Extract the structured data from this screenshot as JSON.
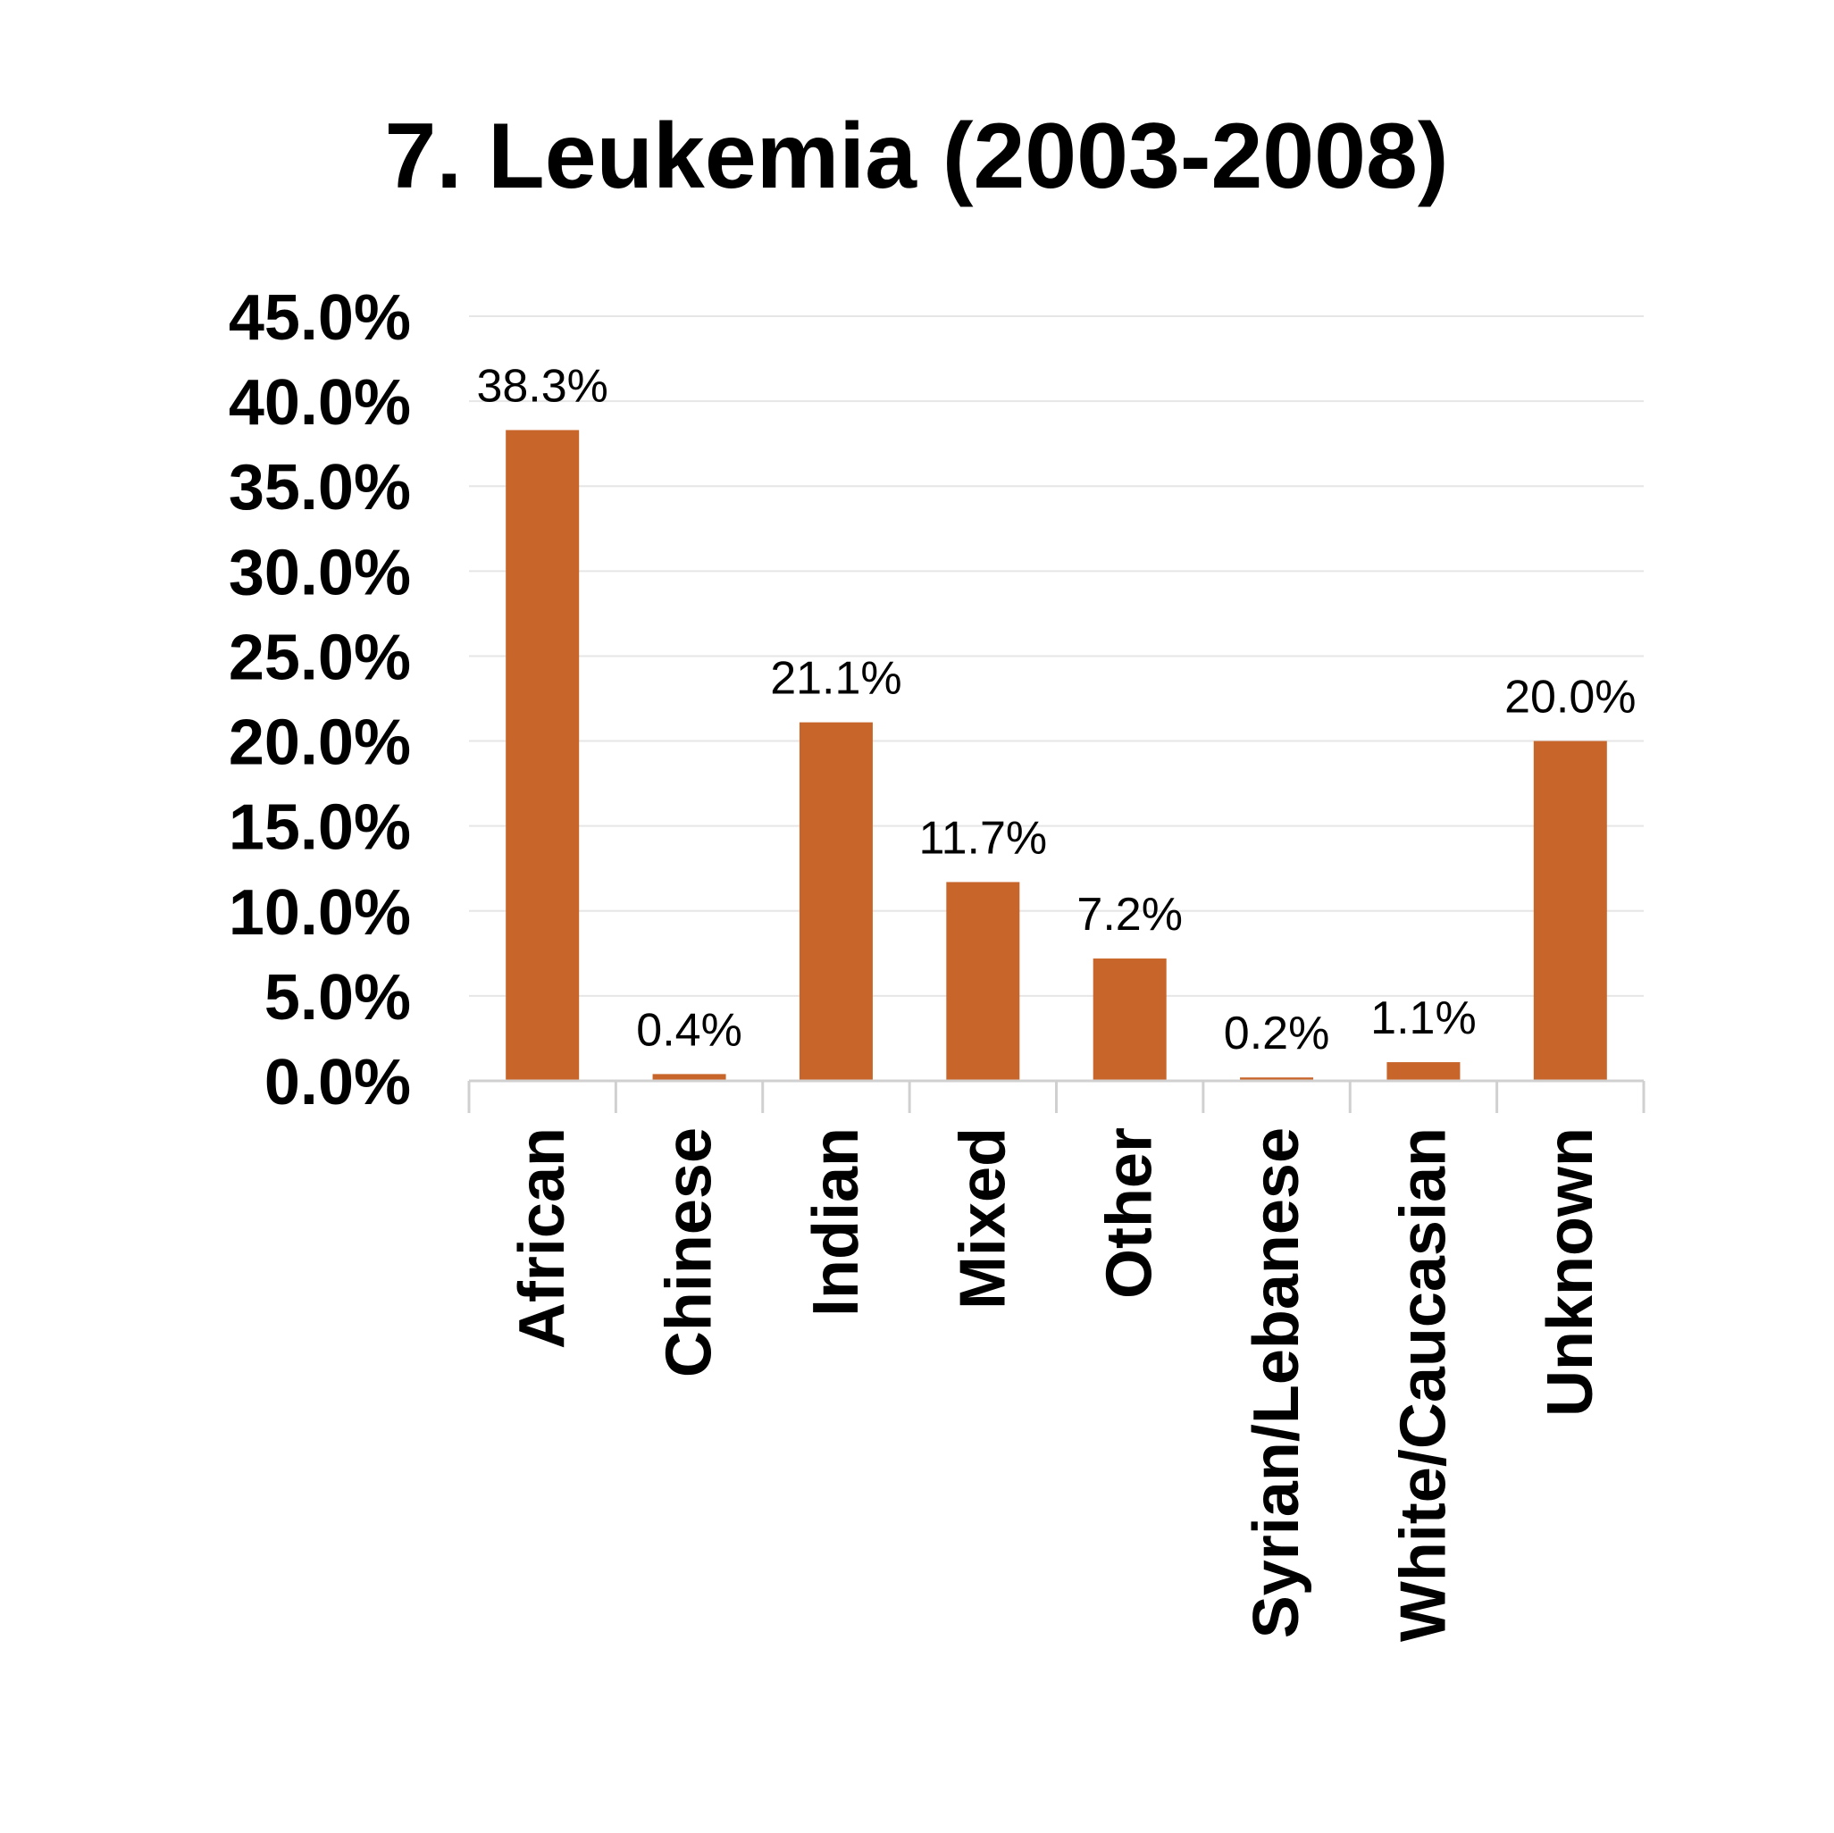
{
  "chart_data": {
    "type": "bar",
    "title": "7. Leukemia (2003-2008)",
    "categories": [
      "African",
      "Chinese",
      "Indian",
      "Mixed",
      "Other",
      "Syrian/Lebanese",
      "White/Caucasian",
      "Unknown"
    ],
    "values": [
      38.3,
      0.4,
      21.1,
      11.7,
      7.2,
      0.2,
      1.1,
      20.0
    ],
    "data_labels": [
      "38.3%",
      "0.4%",
      "21.1%",
      "11.7%",
      "7.2%",
      "0.2%",
      "1.1%",
      "20.0%"
    ],
    "yticks": [
      "0.0%",
      "5.0%",
      "10.0%",
      "15.0%",
      "20.0%",
      "25.0%",
      "30.0%",
      "35.0%",
      "40.0%",
      "45.0%"
    ],
    "ylim": [
      0,
      45
    ],
    "bar_color": "#C8652A",
    "grid": true,
    "legend": "none",
    "xlabel": "",
    "ylabel": ""
  }
}
